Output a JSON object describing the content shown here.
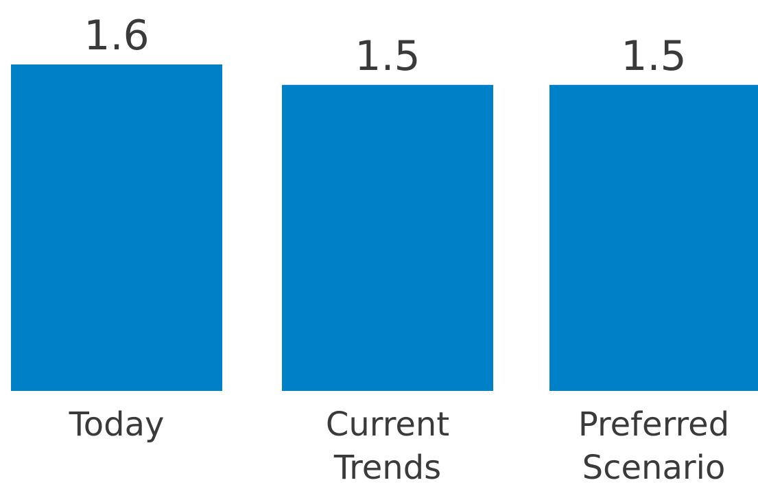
{
  "chart_data": {
    "type": "bar",
    "categories": [
      [
        "Today"
      ],
      [
        "Current",
        "Trends"
      ],
      [
        "Preferred",
        "Scenario"
      ]
    ],
    "values": [
      1.6,
      1.5,
      1.5
    ],
    "value_labels": [
      "1.6",
      "1.5",
      "1.5"
    ],
    "bar_color": "#0080C6",
    "text_color": "#3a3a3a",
    "grid": false,
    "legend": "none"
  }
}
